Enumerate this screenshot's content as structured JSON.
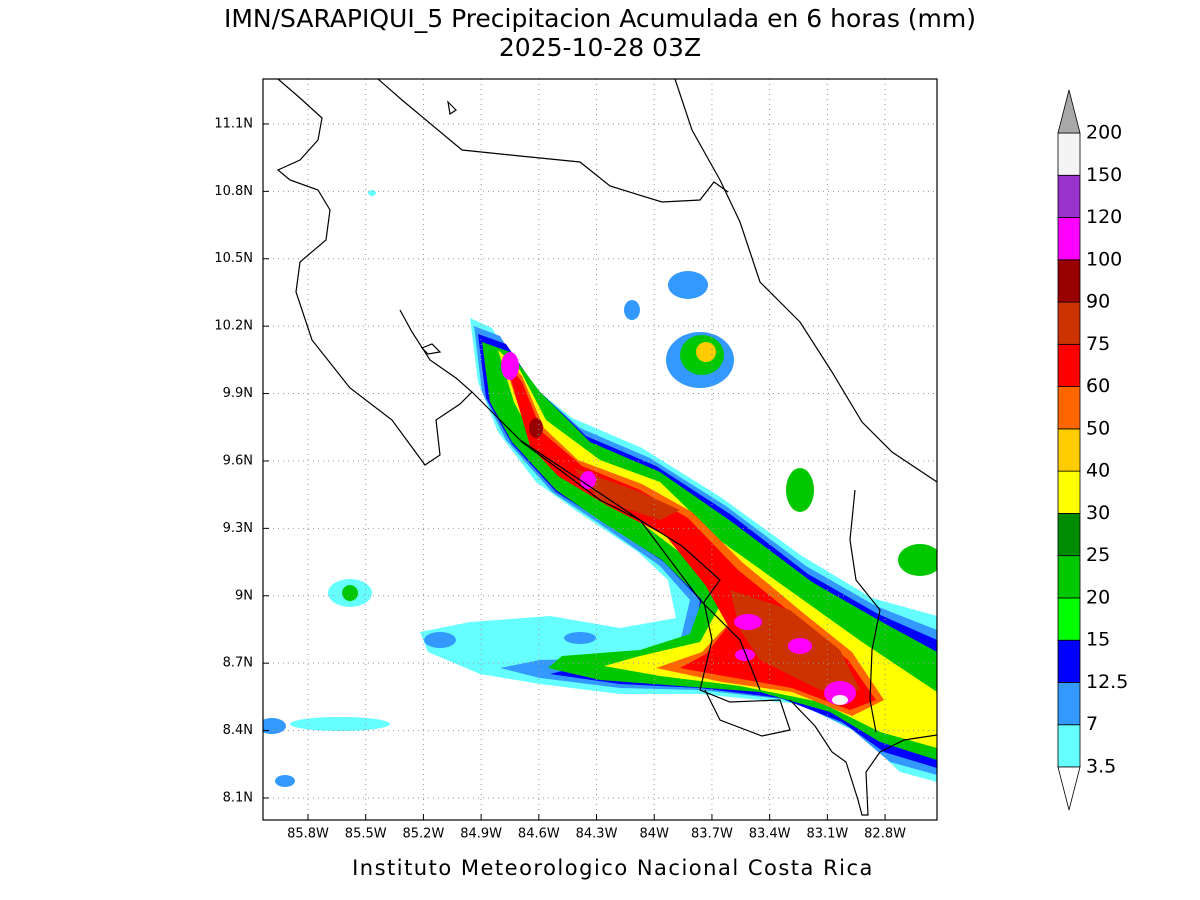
{
  "title": "IMN/SARAPIQUI_5 Precipitacion Acumulada en 6 horas (mm)",
  "subtitle": "2025-10-28 03Z",
  "map": {
    "xlim": [
      -86.034,
      -82.53
    ],
    "ylim": [
      8.002,
      11.3
    ],
    "xticks": [
      {
        "value": -85.8,
        "label": "85.8W"
      },
      {
        "value": -85.5,
        "label": "85.5W"
      },
      {
        "value": -85.2,
        "label": "85.2W"
      },
      {
        "value": -84.9,
        "label": "84.9W"
      },
      {
        "value": -84.6,
        "label": "84.6W"
      },
      {
        "value": -84.3,
        "label": "84.3W"
      },
      {
        "value": -84,
        "label": "84W"
      },
      {
        "value": -83.7,
        "label": "83.7W"
      },
      {
        "value": -83.4,
        "label": "83.4W"
      },
      {
        "value": -83.1,
        "label": "83.1W"
      },
      {
        "value": -82.8,
        "label": "82.8W"
      }
    ],
    "yticks": [
      {
        "value": 8.1,
        "label": "8.1N"
      },
      {
        "value": 8.4,
        "label": "8.4N"
      },
      {
        "value": 8.7,
        "label": "8.7N"
      },
      {
        "value": 9,
        "label": "9N"
      },
      {
        "value": 9.3,
        "label": "9.3N"
      },
      {
        "value": 9.6,
        "label": "9.6N"
      },
      {
        "value": 9.9,
        "label": "9.9N"
      },
      {
        "value": 10.2,
        "label": "10.2N"
      },
      {
        "value": 10.5,
        "label": "10.5N"
      },
      {
        "value": 10.8,
        "label": "10.8N"
      },
      {
        "value": 11.1,
        "label": "11.1N"
      }
    ]
  },
  "colorbar": {
    "levels": [
      3.5,
      7,
      12.5,
      15,
      20,
      25,
      30,
      40,
      50,
      60,
      75,
      90,
      100,
      120,
      150,
      200
    ],
    "colors": [
      "#66ffff",
      "#3399ff",
      "#0000ff",
      "#00ff00",
      "#00c800",
      "#008c00",
      "#ffff00",
      "#ffcc00",
      "#ff6600",
      "#ff0000",
      "#cc3300",
      "#990000",
      "#ff00ff",
      "#9933cc",
      "#f4f4f4"
    ],
    "over_color": "#a8a8a8",
    "under_color": "#ffffff"
  },
  "footer": "Instituto Meteorologico Nacional Costa Rica"
}
